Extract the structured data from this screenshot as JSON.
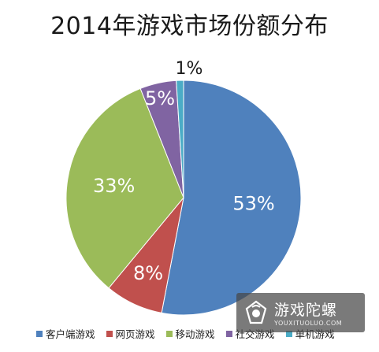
{
  "chart_data": {
    "type": "pie",
    "title": "2014年游戏市场份额分布",
    "start_angle_deg": 0,
    "slices": [
      {
        "name": "客户端游戏",
        "value": 53,
        "label": "53%",
        "color": "#4f81bd",
        "label_color": "#ffffff"
      },
      {
        "name": "网页游戏",
        "value": 8,
        "label": "8%",
        "color": "#c0504d",
        "label_color": "#ffffff"
      },
      {
        "name": "移动游戏",
        "value": 33,
        "label": "33%",
        "color": "#9bbb59",
        "label_color": "#ffffff"
      },
      {
        "name": "社交游戏",
        "value": 5,
        "label": "5%",
        "color": "#8064a2",
        "label_color": "#ffffff"
      },
      {
        "name": "单机游戏",
        "value": 1,
        "label": "1%",
        "color": "#4bacc6",
        "label_color": "#1a1a1a"
      }
    ],
    "legend_position": "bottom"
  },
  "watermark": {
    "cn": "游戏陀螺",
    "en": "YOUXITUOLUO.COM"
  }
}
